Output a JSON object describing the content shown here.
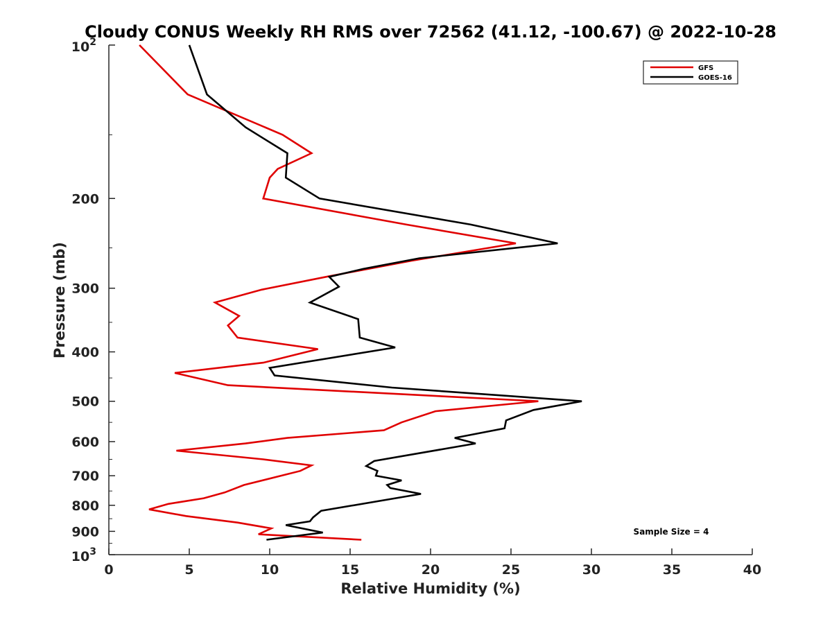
{
  "chart_data": {
    "type": "line",
    "title": "Cloudy CONUS Weekly RH RMS over 72562 (41.12, -100.67) @ 2022-10-28",
    "xlabel": "Relative Humidity (%)",
    "ylabel": "Pressure (mb)",
    "xlim": [
      0,
      40
    ],
    "ylim": [
      100,
      1000
    ],
    "y_scale": "log",
    "y_inverted": true,
    "grid": false,
    "legend_position": "top-right",
    "x_ticks": [
      {
        "value": 0,
        "label": "0"
      },
      {
        "value": 5,
        "label": "5"
      },
      {
        "value": 10,
        "label": "10"
      },
      {
        "value": 15,
        "label": "15"
      },
      {
        "value": 20,
        "label": "20"
      },
      {
        "value": 25,
        "label": "25"
      },
      {
        "value": 30,
        "label": "30"
      },
      {
        "value": 35,
        "label": "35"
      },
      {
        "value": 40,
        "label": "40"
      }
    ],
    "y_ticks": [
      {
        "value": 100,
        "base": "10",
        "exp": "2"
      },
      {
        "value": 200,
        "label": "200"
      },
      {
        "value": 300,
        "label": "300"
      },
      {
        "value": 400,
        "label": "400"
      },
      {
        "value": 500,
        "label": "500"
      },
      {
        "value": 600,
        "label": "600"
      },
      {
        "value": 700,
        "label": "700"
      },
      {
        "value": 800,
        "label": "800"
      },
      {
        "value": 900,
        "label": "900"
      },
      {
        "value": 1000,
        "base": "10",
        "exp": "3"
      }
    ],
    "annotation": "Sample Size = 4",
    "series": [
      {
        "name": "GFS",
        "color": "#e00000",
        "points": [
          [
            1.9,
            100
          ],
          [
            4.9,
            125
          ],
          [
            10.8,
            150
          ],
          [
            12.6,
            163
          ],
          [
            10.5,
            175
          ],
          [
            10.0,
            182
          ],
          [
            9.6,
            200
          ],
          [
            18.5,
            225
          ],
          [
            25.3,
            245
          ],
          [
            18.8,
            265
          ],
          [
            13.5,
            285
          ],
          [
            9.5,
            302
          ],
          [
            6.6,
            320
          ],
          [
            8.1,
            340
          ],
          [
            7.4,
            355
          ],
          [
            8.0,
            375
          ],
          [
            13.0,
            395
          ],
          [
            9.6,
            420
          ],
          [
            4.1,
            440
          ],
          [
            7.4,
            465
          ],
          [
            26.7,
            500
          ],
          [
            20.3,
            523
          ],
          [
            18.2,
            550
          ],
          [
            17.1,
            570
          ],
          [
            11.1,
            590
          ],
          [
            8.5,
            605
          ],
          [
            4.2,
            625
          ],
          [
            9.6,
            650
          ],
          [
            12.6,
            668
          ],
          [
            11.9,
            685
          ],
          [
            8.4,
            730
          ],
          [
            7.2,
            755
          ],
          [
            5.9,
            775
          ],
          [
            3.7,
            795
          ],
          [
            2.5,
            815
          ],
          [
            4.8,
            840
          ],
          [
            8.0,
            865
          ],
          [
            10.1,
            888
          ],
          [
            9.3,
            912
          ],
          [
            15.7,
            935
          ]
        ]
      },
      {
        "name": "GOES-16",
        "color": "#000000",
        "points": [
          [
            5.0,
            100
          ],
          [
            6.1,
            125
          ],
          [
            8.5,
            145
          ],
          [
            11.1,
            163
          ],
          [
            11.0,
            182
          ],
          [
            13.1,
            200
          ],
          [
            22.5,
            225
          ],
          [
            27.9,
            245
          ],
          [
            19.3,
            262
          ],
          [
            15.8,
            275
          ],
          [
            13.7,
            285
          ],
          [
            14.3,
            298
          ],
          [
            12.5,
            320
          ],
          [
            15.5,
            345
          ],
          [
            15.6,
            375
          ],
          [
            17.8,
            392
          ],
          [
            10.0,
            430
          ],
          [
            10.3,
            445
          ],
          [
            17.6,
            470
          ],
          [
            29.4,
            500
          ],
          [
            26.4,
            520
          ],
          [
            24.7,
            545
          ],
          [
            24.6,
            565
          ],
          [
            21.5,
            590
          ],
          [
            22.8,
            605
          ],
          [
            16.5,
            655
          ],
          [
            16.0,
            670
          ],
          [
            16.7,
            685
          ],
          [
            16.6,
            700
          ],
          [
            18.2,
            715
          ],
          [
            17.3,
            730
          ],
          [
            17.5,
            740
          ],
          [
            19.4,
            760
          ],
          [
            13.2,
            820
          ],
          [
            12.7,
            845
          ],
          [
            12.5,
            860
          ],
          [
            11.0,
            875
          ],
          [
            13.3,
            905
          ],
          [
            9.8,
            935
          ]
        ]
      }
    ]
  }
}
